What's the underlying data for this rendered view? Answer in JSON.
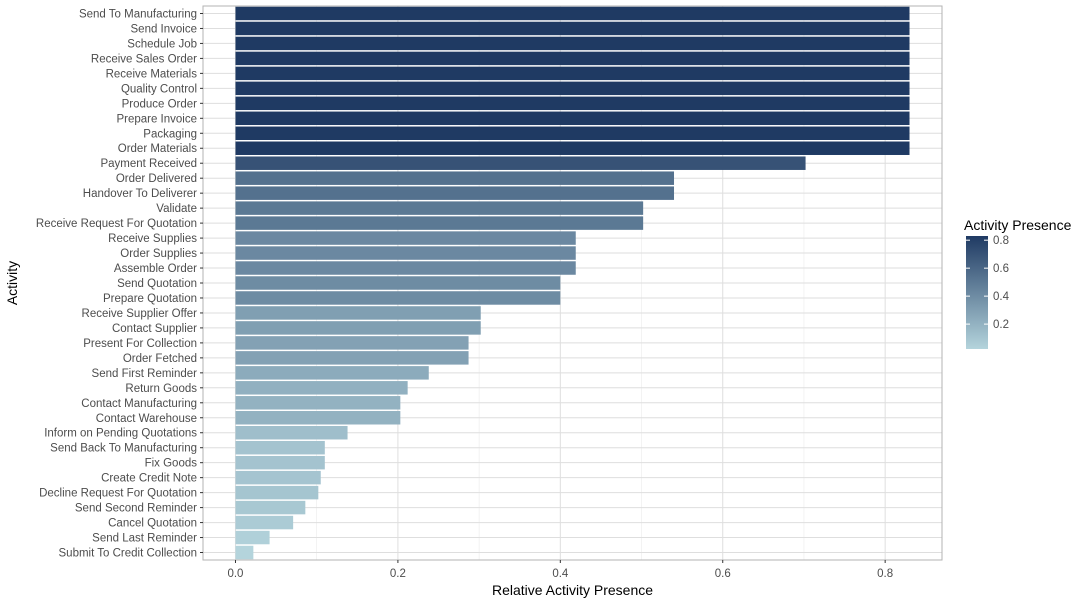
{
  "chart_data": {
    "type": "bar",
    "orientation": "horizontal",
    "xlabel": "Relative Activity Presence",
    "ylabel": "Activity",
    "xlim": [
      -0.04,
      0.87
    ],
    "x_ticks": [
      "0.0",
      "0.2",
      "0.4",
      "0.6",
      "0.8"
    ],
    "grid": true,
    "legend": {
      "title": "Activity Presence",
      "placement": "right",
      "ticks": [
        "0.2",
        "0.4",
        "0.6",
        "0.8"
      ],
      "low_color": "#b4d4dc",
      "high_color": "#1f3a63"
    },
    "categories": [
      "Send To Manufacturing",
      "Send Invoice",
      "Schedule Job",
      "Receive Sales Order",
      "Receive Materials",
      "Quality Control",
      "Produce Order",
      "Prepare Invoice",
      "Packaging",
      "Order Materials",
      "Payment Received",
      "Order Delivered",
      "Handover To Deliverer",
      "Validate",
      "Receive Request For Quotation",
      "Receive Supplies",
      "Order Supplies",
      "Assemble Order",
      "Send Quotation",
      "Prepare Quotation",
      "Receive Supplier Offer",
      "Contact Supplier",
      "Present For Collection",
      "Order Fetched",
      "Send First Reminder",
      "Return Goods",
      "Contact Manufacturing",
      "Contact Warehouse",
      "Inform on Pending Quotations",
      "Send Back To Manufacturing",
      "Fix Goods",
      "Create Credit Note",
      "Decline Request For Quotation",
      "Send Second Reminder",
      "Cancel Quotation",
      "Send Last Reminder",
      "Submit To Credit Collection"
    ],
    "values": [
      0.83,
      0.83,
      0.83,
      0.83,
      0.83,
      0.83,
      0.83,
      0.83,
      0.83,
      0.83,
      0.702,
      0.54,
      0.54,
      0.502,
      0.502,
      0.419,
      0.419,
      0.419,
      0.4,
      0.4,
      0.302,
      0.302,
      0.287,
      0.287,
      0.238,
      0.212,
      0.203,
      0.203,
      0.138,
      0.11,
      0.11,
      0.105,
      0.102,
      0.086,
      0.071,
      0.042,
      0.022
    ]
  }
}
